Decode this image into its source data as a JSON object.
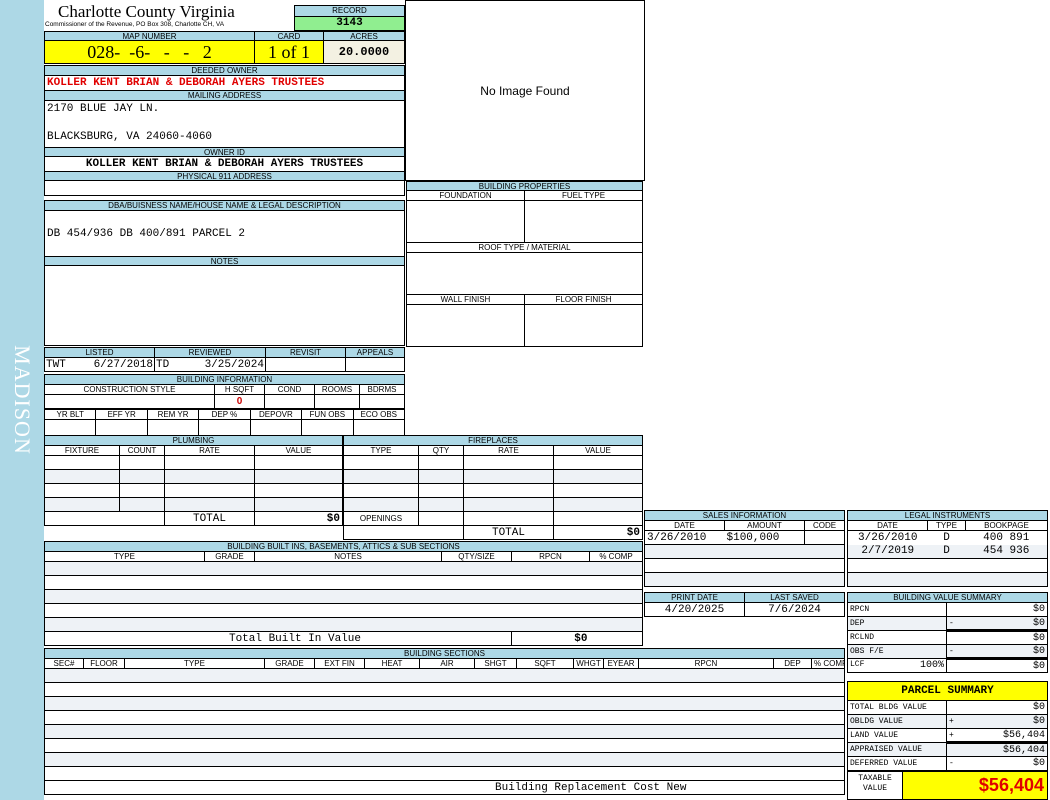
{
  "sidebar": {
    "district": "MADISON"
  },
  "header": {
    "county": "Charlotte County Virginia",
    "subtitle": "Commissioner of the Revenue, PO Box 308, Charlotte CH, VA",
    "record_label": "RECORD",
    "record": "3143"
  },
  "parcel": {
    "map_label": "MAP NUMBER",
    "map": "028-  -6-   -   -   2",
    "card_label": "CARD",
    "card": "1 of 1",
    "acres_label": "ACRES",
    "acres": "20.0000"
  },
  "owner": {
    "deeded_label": "DEEDED OWNER",
    "deeded": "KOLLER KENT BRIAN & DEBORAH AYERS TRUSTEES",
    "mailing_label": "MAILING ADDRESS",
    "mail1": "2170 BLUE JAY LN.",
    "mail2": "BLACKSBURG, VA 24060-4060",
    "id_label": "OWNER ID",
    "id": "KOLLER KENT BRIAN & DEBORAH AYERS TRUSTEES",
    "physical_label": "PHYSICAL 911 ADDRESS",
    "physical": ""
  },
  "image": {
    "text": "No Image Found"
  },
  "dba": {
    "label": "DBA/BUISNESS NAME/HOUSE NAME & LEGAL DESCRIPTION",
    "value": "DB 454/936 DB 400/891 PARCEL 2"
  },
  "notes": {
    "label": "NOTES"
  },
  "props": {
    "label": "BUILDING PROPERTIES",
    "foundation": "FOUNDATION",
    "fuel": "FUEL TYPE",
    "roof": "ROOF TYPE / MATERIAL",
    "wall": "WALL FINISH",
    "floor": "FLOOR FINISH"
  },
  "review": {
    "listed_label": "LISTED",
    "listed_by": "TWT",
    "listed": "6/27/2018",
    "reviewed_label": "REVIEWED",
    "reviewed_by": "TD",
    "reviewed": "3/25/2024",
    "revisit_label": "REVISIT",
    "appeals_label": "APPEALS"
  },
  "info": {
    "label": "BUILDING INFORMATION",
    "cols1": [
      "CONSTRUCTION STYLE",
      "H SQFT",
      "COND",
      "ROOMS",
      "BDRMS"
    ],
    "hsqft": "0",
    "cols2": [
      "YR BLT",
      "EFF YR",
      "REM YR",
      "DEP %",
      "DEPOVR",
      "FUN OBS",
      "ECO OBS"
    ]
  },
  "plumbing": {
    "label": "PLUMBING",
    "cols": [
      "FIXTURE",
      "COUNT",
      "RATE",
      "VALUE"
    ],
    "total_label": "TOTAL",
    "total": "$0"
  },
  "fireplaces": {
    "label": "FIREPLACES",
    "cols": [
      "TYPE",
      "QTY",
      "RATE",
      "VALUE"
    ],
    "openings": "OPENINGS",
    "total_label": "TOTAL",
    "total": "$0"
  },
  "builtins": {
    "label": "BUILDING BUILT INS, BASEMENTS, ATTICS & SUB SECTIONS",
    "cols": [
      "TYPE",
      "GRADE",
      "NOTES",
      "QTY/SIZE",
      "RPCN",
      "% COMP"
    ],
    "total_label": "Total Built In Value",
    "total": "$0"
  },
  "sections": {
    "label": "BUILDING SECTIONS",
    "cols": [
      "SEC#",
      "FLOOR",
      "TYPE",
      "GRADE",
      "EXT FIN",
      "HEAT",
      "AIR",
      "SHGT",
      "SQFT",
      "WHGT",
      "EYEAR",
      "RPCN",
      "DEP",
      "% COMP"
    ],
    "footer": "Building Replacement Cost New"
  },
  "sales": {
    "label": "SALES INFORMATION",
    "cols": [
      "DATE",
      "AMOUNT",
      "CODE"
    ],
    "rows": [
      [
        "3/26/2010",
        "$100,000",
        ""
      ]
    ]
  },
  "legal": {
    "label": "LEGAL INSTRUMENTS",
    "cols": [
      "DATE",
      "TYPE",
      "BOOKPAGE"
    ],
    "rows": [
      [
        "3/26/2010",
        "D",
        "400 891"
      ],
      [
        "2/7/2019",
        "D",
        "454 936"
      ]
    ]
  },
  "dates": {
    "print_label": "PRINT DATE",
    "print": "4/20/2025",
    "saved_label": "LAST SAVED",
    "saved": "7/6/2024"
  },
  "bvs": {
    "label": "BUILDING VALUE SUMMARY",
    "rows": [
      {
        "k": "RPCN",
        "s": "",
        "v": "$0"
      },
      {
        "k": "DEP",
        "s": "-",
        "v": "$0"
      },
      {
        "k": "RCLND",
        "s": "",
        "v": "$0"
      },
      {
        "k": "OBS F/E",
        "s": "-",
        "v": "$0"
      },
      {
        "k": "LCF",
        "s": "",
        "v": "$0"
      }
    ],
    "lcf_pct": "100%"
  },
  "summary": {
    "label": "PARCEL SUMMARY",
    "rows": [
      {
        "k": "TOTAL BLDG VALUE",
        "s": "",
        "v": "$0"
      },
      {
        "k": "OBLDG VALUE",
        "s": "+",
        "v": "$0"
      },
      {
        "k": "LAND VALUE",
        "s": "+",
        "v": "$56,404"
      },
      {
        "k": "APPRAISED VALUE",
        "s": "",
        "v": "$56,404"
      },
      {
        "k": "DEFERRED VALUE",
        "s": "-",
        "v": "$0"
      }
    ],
    "taxable_label": "TAXABLE VALUE",
    "taxable": "$56,404"
  },
  "colors": {
    "header": "#add8e6",
    "highlight": "#ffff00",
    "record": "#90ee90",
    "owner_red": "#e00000"
  }
}
